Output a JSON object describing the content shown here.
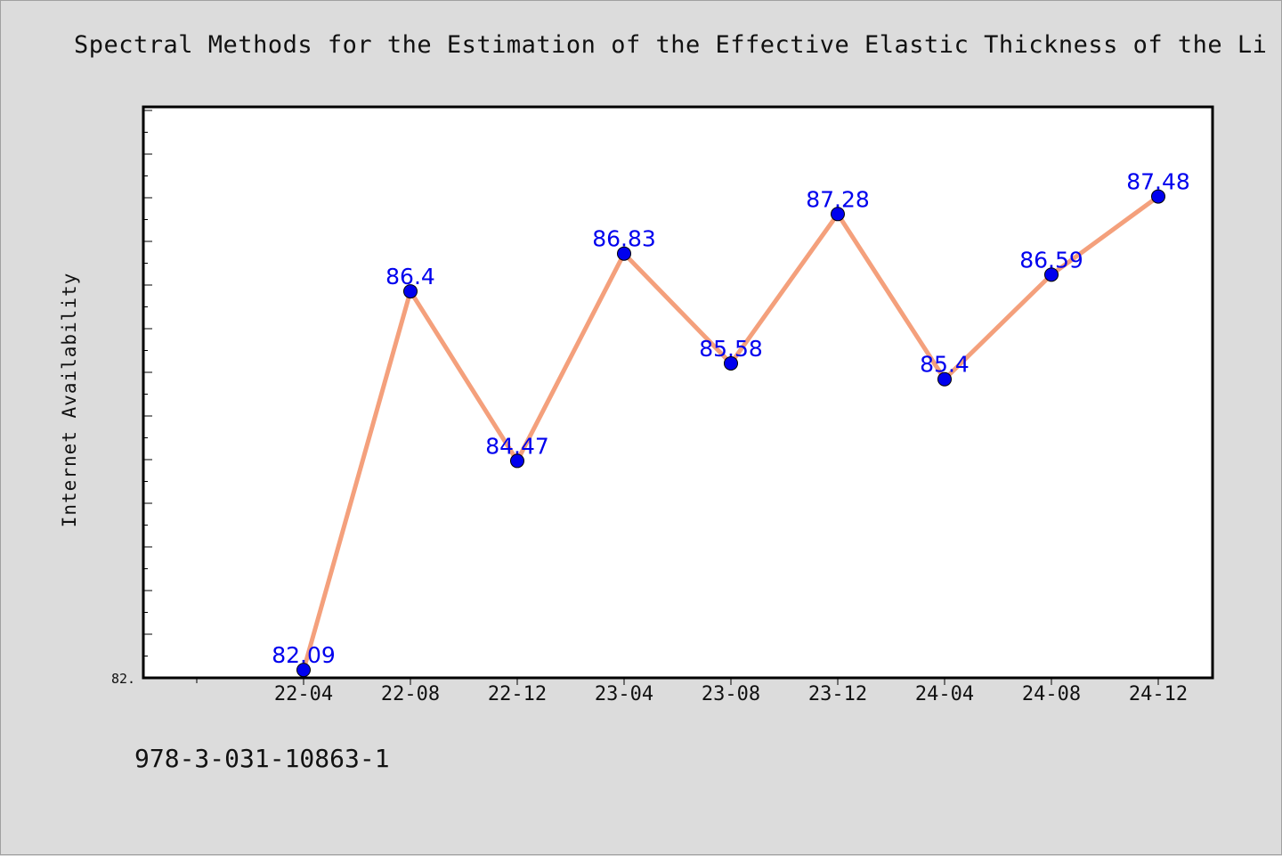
{
  "title": "Spectral Methods for the Estimation of the Effective Elastic Thickness of the Li",
  "footnote": "978-3-031-10863-1",
  "colors": {
    "line": "#f4a07c",
    "marker": "#0000ee",
    "label": "#0000ee",
    "background": "#dcdcdc",
    "plot_bg": "#ffffff"
  },
  "chart_data": {
    "type": "line",
    "title": "Spectral Methods for the Estimation of the Effective Elastic Thickness of the Li",
    "xlabel": "",
    "ylabel": "Internet Availability",
    "categories": [
      "22-04",
      "22-08",
      "22-12",
      "23-04",
      "23-08",
      "23-12",
      "24-04",
      "24-08",
      "24-12"
    ],
    "series": [
      {
        "values": [
          82.09,
          86.4,
          84.47,
          86.83,
          85.58,
          87.28,
          85.4,
          86.59,
          87.48
        ],
        "data_labels": [
          "82.09",
          "86.4",
          "84.47",
          "86.83",
          "85.58",
          "87.28",
          "85.4",
          "86.59",
          "87.48"
        ]
      }
    ],
    "ylim": [
      82.0,
      88.5
    ],
    "ytick_label": "82.",
    "grid": false,
    "legend": "none"
  }
}
